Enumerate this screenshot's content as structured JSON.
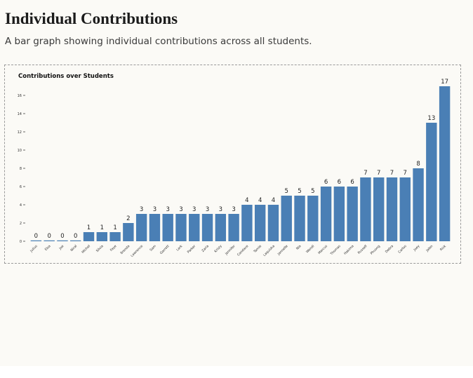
{
  "header": {
    "title": "Individual Contributions",
    "subtitle": "A bar graph showing individual contributions across all students."
  },
  "colors": {
    "background": "#fbfaf6",
    "bar": "#4a7fb5",
    "text": "#1b1b1b",
    "frame_border": "#9a9a9a"
  },
  "chart_data": {
    "type": "bar",
    "title": "Contributions over Students",
    "xlabel": "",
    "ylabel": "",
    "categories": [
      "Julius",
      "Elsa",
      "Joe",
      "Niral",
      "Michel",
      "Silvia",
      "Faye",
      "Brenda",
      "Lawrence",
      "Sam",
      "Garrett",
      "Lark",
      "Parker",
      "Zaria",
      "Kristy",
      "Jennifer",
      "Candace",
      "Tamie",
      "Laquisha",
      "Jannelle",
      "Nia",
      "Wendi",
      "Marcus",
      "Thomas",
      "Hakima",
      "Russell",
      "Phuong",
      "Debra",
      "Carlos",
      "Joey",
      "Jalen",
      "Rick"
    ],
    "values": [
      0,
      0,
      0,
      0,
      1,
      1,
      1,
      2,
      3,
      3,
      3,
      3,
      3,
      3,
      3,
      3,
      4,
      4,
      4,
      5,
      5,
      5,
      6,
      6,
      6,
      7,
      7,
      7,
      7,
      8,
      13,
      17
    ],
    "ylim": [
      0,
      17
    ],
    "yticks": [
      0,
      2,
      4,
      6,
      8,
      10,
      12,
      14,
      16
    ],
    "data_labels": true,
    "grid": false,
    "legend": "none"
  }
}
